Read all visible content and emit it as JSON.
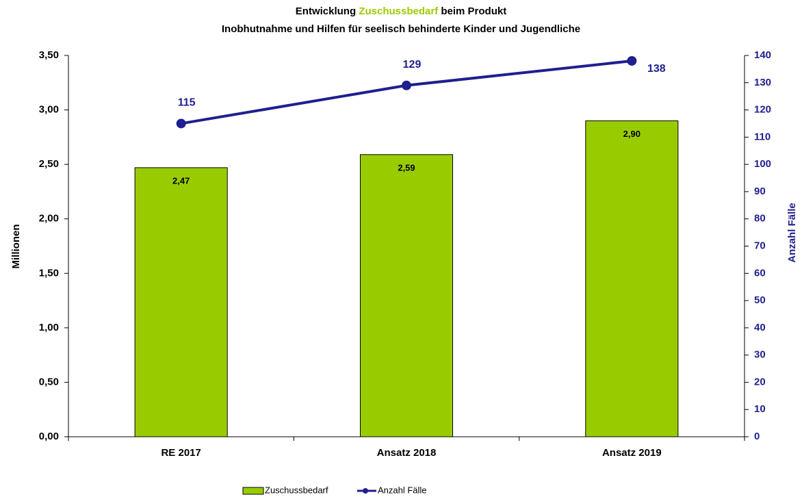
{
  "chart_data": {
    "type": "bar_line",
    "title_parts": [
      "Entwicklung ",
      "Zuschussbedarf",
      " beim Produkt"
    ],
    "subtitle": "Inobhutnahme und Hilfen für seelisch behinderte Kinder und Jugendliche",
    "y_label": "Millionen",
    "y2_label": "Anzahl Fälle",
    "categories": [
      "RE 2017",
      "Ansatz 2018",
      "Ansatz 2019"
    ],
    "series": [
      {
        "name": "Zuschussbedarf",
        "type": "bar",
        "color": "#99cc00",
        "values": [
          2.47,
          2.59,
          2.9
        ],
        "value_labels": [
          "2,47",
          "2,59",
          "2,90"
        ]
      },
      {
        "name": "Anzahl Fälle",
        "type": "line",
        "axis": "y2",
        "color": "#1f1f8f",
        "values": [
          115,
          129,
          138
        ]
      }
    ],
    "ylim": [
      0,
      3.5
    ],
    "yticks": [
      {
        "value": 0,
        "label": "0,00"
      },
      {
        "value": 0.5,
        "label": "0,50"
      },
      {
        "value": 1,
        "label": "1,00"
      },
      {
        "value": 1.5,
        "label": "1,50"
      },
      {
        "value": 2,
        "label": "2,00"
      },
      {
        "value": 2.5,
        "label": "2,50"
      },
      {
        "value": 3,
        "label": "3,00"
      },
      {
        "value": 3.5,
        "label": "3,50"
      }
    ],
    "y2lim": [
      0,
      140
    ],
    "y2ticks": [
      0,
      10,
      20,
      30,
      40,
      50,
      60,
      70,
      80,
      90,
      100,
      110,
      120,
      130,
      140
    ],
    "grid": false
  }
}
